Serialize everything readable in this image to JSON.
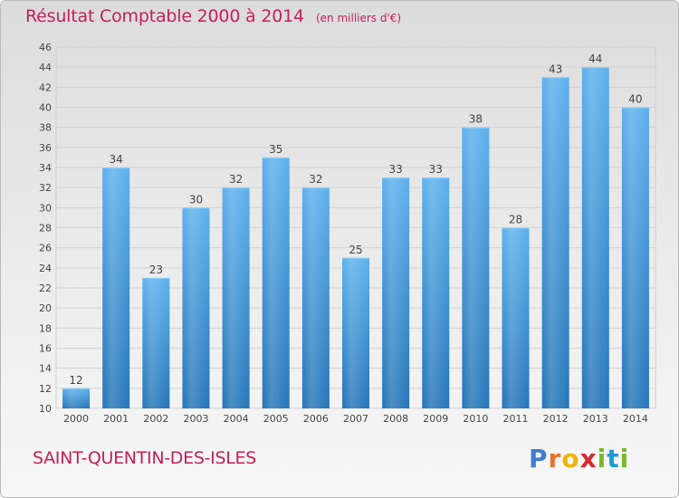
{
  "header": {
    "title": "Résultat Comptable 2000 à 2014",
    "unit": "(en milliers d'€)"
  },
  "footer": {
    "commune": "SAINT-QUENTIN-DES-ISLES",
    "brand_letters": [
      "P",
      "r",
      "o",
      "x",
      "i",
      "t",
      "i"
    ],
    "brand_colors": [
      "#3f7fcf",
      "#e8732a",
      "#f2b400",
      "#d8282e",
      "#7ab72a",
      "#1f9ad6",
      "#7ab72a"
    ]
  },
  "colors": {
    "accent": "#c41f5a",
    "bar": "#3e97db"
  },
  "chart_data": {
    "type": "bar",
    "title": "Résultat Comptable 2000 à 2014",
    "categories": [
      "2000",
      "2001",
      "2002",
      "2003",
      "2004",
      "2005",
      "2006",
      "2007",
      "2008",
      "2009",
      "2010",
      "2011",
      "2012",
      "2013",
      "2014"
    ],
    "values": [
      12,
      34,
      23,
      30,
      32,
      35,
      32,
      25,
      33,
      33,
      38,
      28,
      43,
      44,
      40
    ],
    "data_labels": [
      "12",
      "34",
      "23",
      "30",
      "32",
      "35",
      "32",
      "25",
      "33",
      "33",
      "38",
      "28",
      "43",
      "44",
      "40"
    ],
    "yticks": [
      "10",
      "12",
      "14",
      "16",
      "18",
      "20",
      "22",
      "24",
      "26",
      "28",
      "30",
      "32",
      "34",
      "36",
      "38",
      "40",
      "42",
      "44",
      "46"
    ],
    "ylim": [
      10,
      46
    ],
    "grid": true,
    "legend": "none"
  }
}
